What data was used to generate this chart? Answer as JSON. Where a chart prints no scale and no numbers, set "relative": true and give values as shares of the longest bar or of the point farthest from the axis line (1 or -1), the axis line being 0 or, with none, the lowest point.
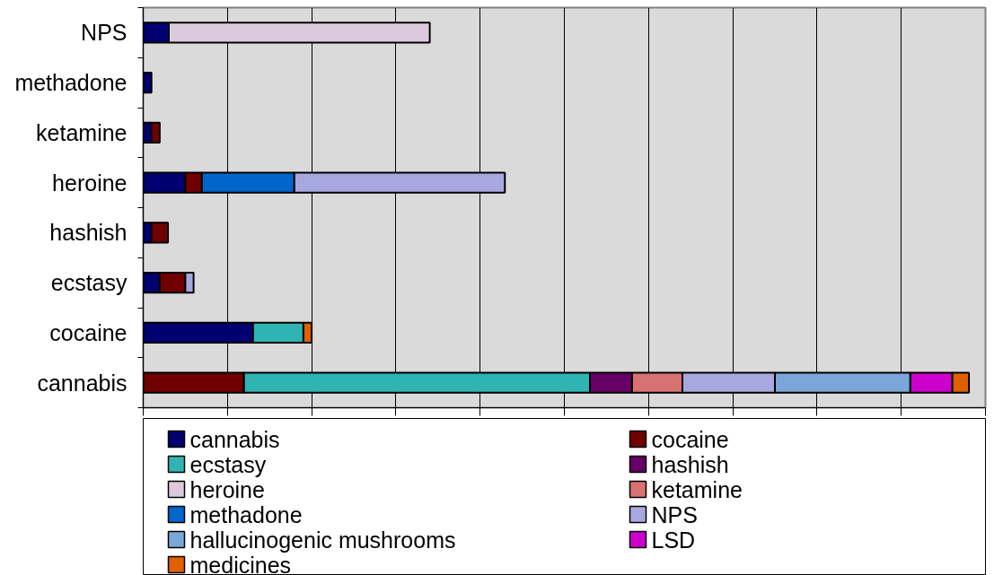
{
  "chart_data": {
    "type": "bar",
    "orientation": "horizontal",
    "stacked": true,
    "relative": true,
    "categories": [
      "NPS",
      "methadone",
      "ketamine",
      "heroine",
      "hashish",
      "ecstasy",
      "cocaine",
      "cannabis"
    ],
    "series": [
      {
        "name": "cannabis",
        "color": "#000070",
        "values": [
          0.031,
          0.01,
          0.01,
          0.051,
          0.01,
          0.02,
          0.133,
          null
        ]
      },
      {
        "name": "cocaine",
        "color": "#700000",
        "values": [
          null,
          null,
          0.01,
          0.02,
          0.02,
          0.031,
          null,
          0.122
        ]
      },
      {
        "name": "ecstasy",
        "color": "#2fb3b3",
        "values": [
          null,
          null,
          null,
          null,
          null,
          null,
          0.061,
          0.419
        ]
      },
      {
        "name": "hashish",
        "color": "#660066",
        "values": [
          null,
          null,
          null,
          null,
          null,
          null,
          null,
          0.051
        ]
      },
      {
        "name": "heroine",
        "color": "#dccadc",
        "values": [
          0.316,
          null,
          null,
          null,
          null,
          null,
          null,
          null
        ]
      },
      {
        "name": "ketamine",
        "color": "#d87272",
        "values": [
          null,
          null,
          null,
          null,
          null,
          null,
          null,
          0.061
        ]
      },
      {
        "name": "methadone",
        "color": "#0066cc",
        "values": [
          null,
          null,
          null,
          0.112,
          null,
          null,
          null,
          null
        ]
      },
      {
        "name": "NPS",
        "color": "#a8a8e0",
        "values": [
          null,
          null,
          null,
          0.255,
          null,
          0.01,
          null,
          0.112
        ]
      },
      {
        "name": "hallucinogenic mushrooms",
        "color": "#7ba6d8",
        "values": [
          null,
          null,
          null,
          null,
          null,
          null,
          null,
          0.164
        ]
      },
      {
        "name": "LSD",
        "color": "#cc00cc",
        "values": [
          null,
          null,
          null,
          null,
          null,
          null,
          null,
          0.051
        ]
      },
      {
        "name": "medicines",
        "color": "#e06000",
        "values": [
          null,
          null,
          null,
          null,
          null,
          null,
          0.01,
          0.02
        ]
      }
    ],
    "grid": "x",
    "legend": "bottom",
    "tick_labels": "y"
  }
}
